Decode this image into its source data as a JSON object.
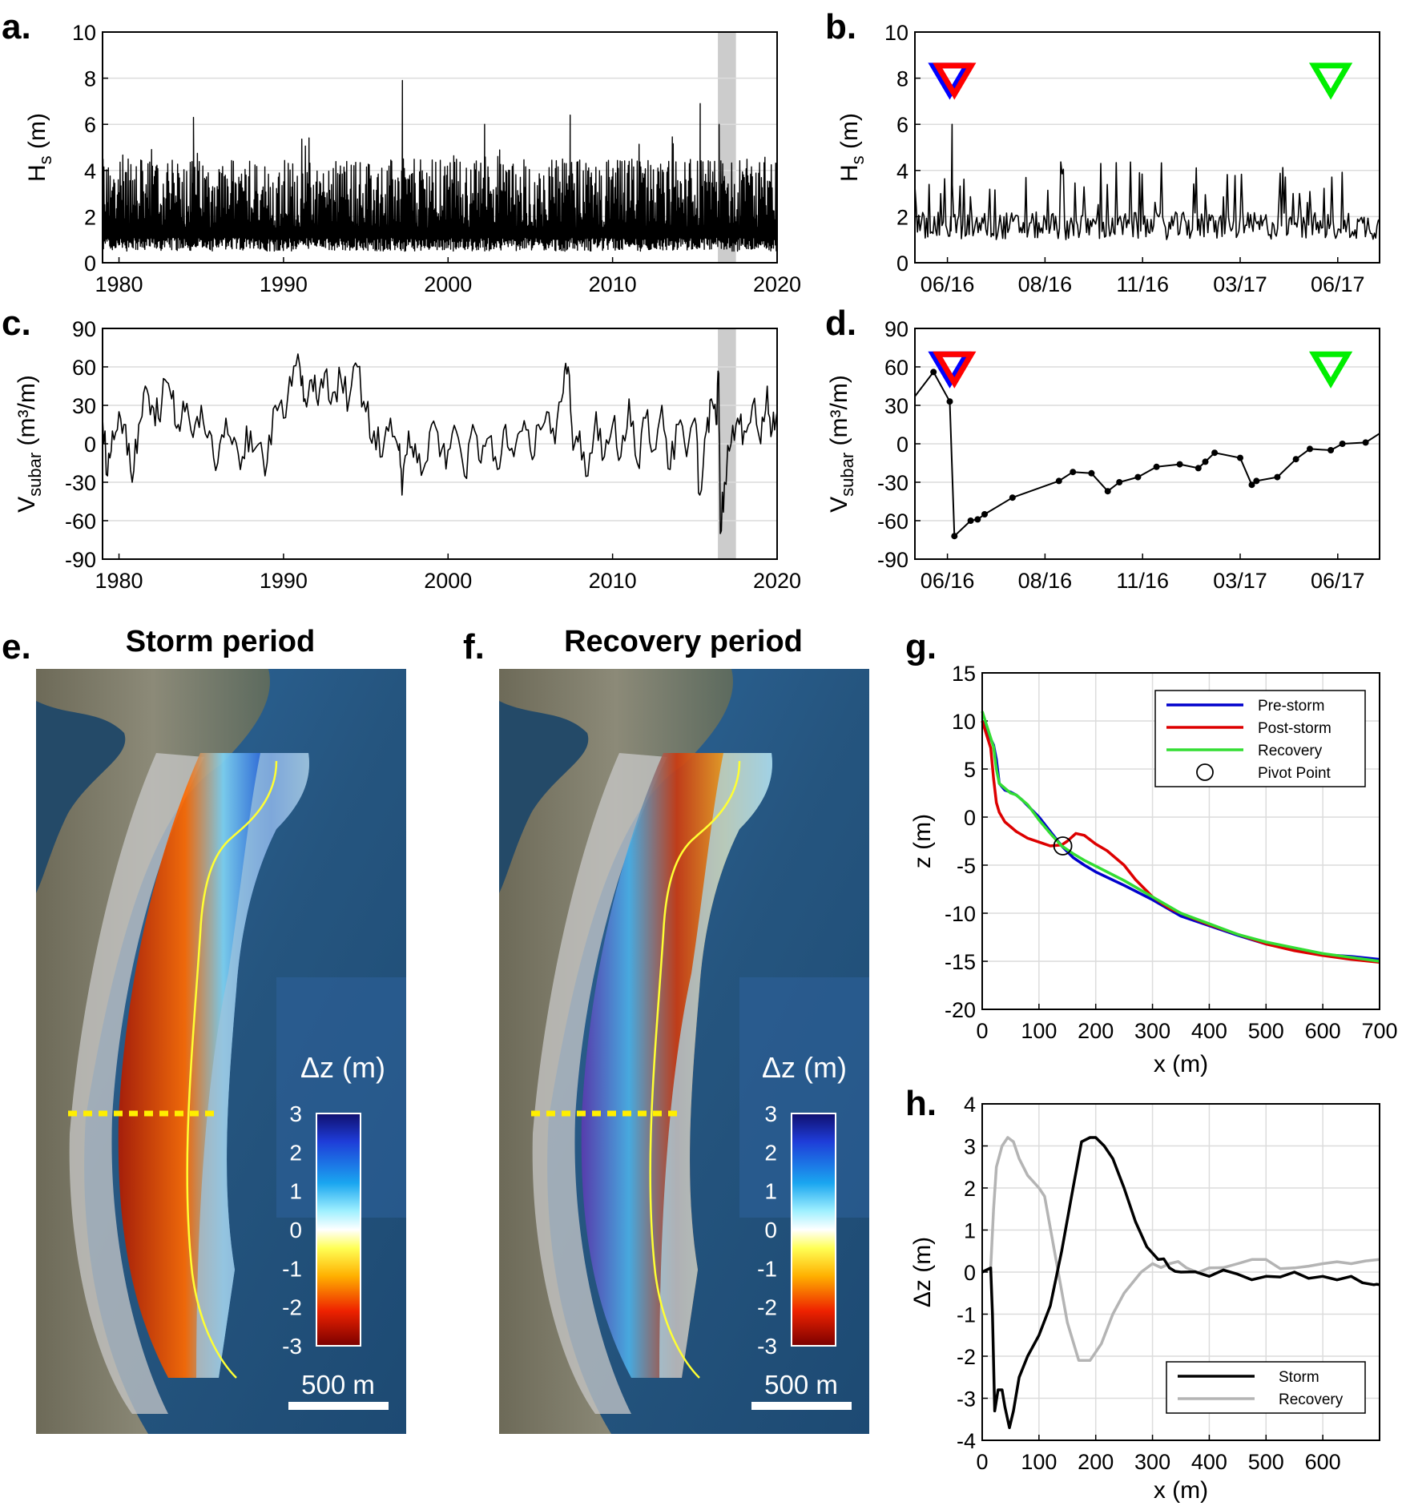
{
  "figure": {
    "panel_letters": [
      "a.",
      "b.",
      "c.",
      "d.",
      "e.",
      "f.",
      "g.",
      "h."
    ]
  },
  "chart_data": [
    {
      "id": "a",
      "type": "line",
      "title": "",
      "ylabel_main": "H",
      "ylabel_sub": "s",
      "ylabel_unit": " (m)",
      "xlim": [
        1979,
        2020
      ],
      "ylim": [
        0,
        10
      ],
      "xticks": [
        1980,
        1990,
        2000,
        2010,
        2020
      ],
      "yticks": [
        0,
        2,
        4,
        6,
        8,
        10
      ],
      "shaded_period": [
        2016.4,
        2017.5
      ],
      "series_summary": {
        "baseline_min": 0.5,
        "typical": 1.5,
        "typical_upper": 4.0,
        "notable_peaks": [
          [
            1984.5,
            6.3
          ],
          [
            1997.2,
            7.9
          ],
          [
            2002.2,
            6.0
          ],
          [
            2007.4,
            6.4
          ],
          [
            2015.3,
            6.9
          ],
          [
            2016.45,
            6.0
          ]
        ]
      },
      "color": "#000000"
    },
    {
      "id": "b",
      "type": "line",
      "ylabel_main": "H",
      "ylabel_sub": "s",
      "ylabel_unit": " (m)",
      "xlim": [
        0,
        100
      ],
      "ylim": [
        0,
        10
      ],
      "xtick_labels": [
        "06/16",
        "08/16",
        "11/16",
        "03/17",
        "06/17"
      ],
      "xtick_positions": [
        7,
        28,
        49,
        70,
        91
      ],
      "yticks": [
        0,
        2,
        4,
        6,
        8,
        10
      ],
      "values_summary": {
        "peak_pos": 8,
        "peak_value": 6.0,
        "typical": 1.6
      },
      "markers": [
        {
          "x": 7.5,
          "y": 8,
          "color": "#0000ff",
          "label": "Pre-storm"
        },
        {
          "x": 8.5,
          "y": 8,
          "color": "#ff0000",
          "label": "Post-storm"
        },
        {
          "x": 89.5,
          "y": 8,
          "color": "#00ee00",
          "label": "Recovery"
        }
      ]
    },
    {
      "id": "c",
      "type": "line",
      "ylabel_main": "V",
      "ylabel_sub": "subar",
      "ylabel_unit": " (m³/m)",
      "xlim": [
        1979,
        2020
      ],
      "ylim": [
        -90,
        90
      ],
      "xticks": [
        1980,
        1990,
        2000,
        2010,
        2020
      ],
      "yticks": [
        -90,
        -60,
        -30,
        0,
        30,
        60,
        90
      ],
      "shaded_period": [
        2016.4,
        2017.5
      ],
      "x": [
        1979.0,
        1979.3,
        1979.6,
        1980.0,
        1980.4,
        1980.8,
        1981.2,
        1981.6,
        1982.0,
        1982.4,
        1982.8,
        1983.2,
        1983.6,
        1984.0,
        1984.5,
        1985.0,
        1985.5,
        1986.0,
        1986.5,
        1987.0,
        1987.5,
        1988.0,
        1988.5,
        1989.0,
        1989.5,
        1990.0,
        1990.5,
        1991.0,
        1991.3,
        1991.7,
        1992.1,
        1992.5,
        1993.0,
        1993.5,
        1994.0,
        1994.5,
        1995.0,
        1995.5,
        1996.0,
        1996.5,
        1997.0,
        1997.2,
        1997.6,
        1998.0,
        1998.5,
        1999.0,
        1999.5,
        2000.0,
        2000.5,
        2001.0,
        2001.5,
        2002.0,
        2002.5,
        2003.0,
        2003.5,
        2004.0,
        2004.5,
        2005.0,
        2005.5,
        2006.0,
        2006.5,
        2007.0,
        2007.3,
        2007.6,
        2008.0,
        2008.5,
        2009.0,
        2009.5,
        2010.0,
        2010.5,
        2011.0,
        2011.5,
        2012.0,
        2012.5,
        2013.0,
        2013.5,
        2014.0,
        2014.5,
        2015.0,
        2015.3,
        2015.7,
        2016.0,
        2016.3,
        2016.45,
        2016.55,
        2016.8,
        2017.2,
        2017.6,
        2018.0,
        2018.5,
        2019.0,
        2019.4,
        2019.7,
        2020.0
      ],
      "values": [
        20,
        -25,
        10,
        25,
        15,
        -30,
        15,
        45,
        30,
        20,
        50,
        35,
        15,
        25,
        5,
        30,
        10,
        -15,
        20,
        5,
        -10,
        10,
        0,
        -15,
        30,
        20,
        45,
        60,
        35,
        50,
        30,
        55,
        40,
        50,
        35,
        60,
        25,
        10,
        -10,
        20,
        -5,
        -40,
        10,
        0,
        -20,
        15,
        -10,
        -5,
        10,
        -25,
        15,
        -15,
        5,
        -20,
        15,
        -10,
        10,
        -5,
        15,
        25,
        0,
        40,
        60,
        -5,
        10,
        -25,
        25,
        -10,
        15,
        -10,
        35,
        -15,
        20,
        -5,
        30,
        -20,
        15,
        -10,
        20,
        -40,
        10,
        35,
        15,
        55,
        -70,
        -30,
        0,
        20,
        10,
        30,
        0,
        45,
        10,
        25
      ],
      "color": "#000000"
    },
    {
      "id": "d",
      "type": "line",
      "ylabel_main": "V",
      "ylabel_sub": "subar",
      "ylabel_unit": " (m³/m)",
      "xlim": [
        0,
        100
      ],
      "ylim": [
        -90,
        90
      ],
      "xtick_labels": [
        "06/16",
        "08/16",
        "11/16",
        "03/17",
        "06/17"
      ],
      "xtick_positions": [
        7,
        28,
        49,
        70,
        91
      ],
      "yticks": [
        -90,
        -60,
        -30,
        0,
        30,
        60,
        90
      ],
      "x": [
        0,
        4,
        7.5,
        8.5,
        12,
        13.5,
        15,
        21,
        31,
        34,
        38,
        41.5,
        44,
        48,
        52,
        57,
        61,
        62.5,
        64.5,
        70,
        72.5,
        73.5,
        78,
        82,
        85,
        89.5,
        92,
        97,
        100
      ],
      "values": [
        37,
        56,
        33,
        -72,
        -60,
        -59,
        -55,
        -42,
        -29,
        -22,
        -23,
        -37,
        -30,
        -26,
        -18,
        -16,
        -19,
        -14,
        -7,
        -11,
        -32,
        -29,
        -26,
        -12,
        -4,
        -5,
        0,
        1,
        8
      ],
      "markers": [
        {
          "x": 7.5,
          "y": 60,
          "color": "#0000ff"
        },
        {
          "x": 8.5,
          "y": 60,
          "color": "#ff0000"
        },
        {
          "x": 89.5,
          "y": 60,
          "color": "#00ee00"
        }
      ]
    },
    {
      "id": "g",
      "type": "line",
      "xlabel": "x (m)",
      "ylabel": "z (m)",
      "xlim": [
        0,
        700
      ],
      "ylim": [
        -20,
        15
      ],
      "xticks": [
        0,
        100,
        200,
        300,
        400,
        500,
        600,
        700
      ],
      "yticks": [
        -20,
        -15,
        -10,
        -5,
        0,
        5,
        10,
        15
      ],
      "grid": true,
      "legend_position": "top-right",
      "series": [
        {
          "name": "Pre-storm",
          "color": "#0000cc",
          "x": [
            0,
            20,
            25,
            30,
            40,
            50,
            60,
            70,
            80,
            100,
            120,
            140,
            160,
            180,
            200,
            250,
            300,
            350,
            400,
            450,
            500,
            550,
            600,
            650,
            700
          ],
          "y": [
            10,
            7.5,
            6,
            3.5,
            2.8,
            2.6,
            2.3,
            1.8,
            1.2,
            0,
            -1.5,
            -3,
            -4.2,
            -5,
            -5.7,
            -7.1,
            -8.6,
            -10.3,
            -11.3,
            -12.3,
            -13.2,
            -13.8,
            -14.3,
            -14.5,
            -14.8
          ]
        },
        {
          "name": "Post-storm",
          "color": "#dd0000",
          "x": [
            0,
            15,
            20,
            25,
            30,
            40,
            60,
            80,
            100,
            120,
            140,
            150,
            165,
            180,
            200,
            220,
            250,
            270,
            300,
            330,
            370,
            400,
            450,
            500,
            550,
            600,
            650,
            700
          ],
          "y": [
            10,
            7.2,
            4,
            1.5,
            0.5,
            -0.5,
            -1.5,
            -2.2,
            -2.6,
            -3,
            -2.9,
            -2.5,
            -1.7,
            -1.9,
            -2.8,
            -3.5,
            -5,
            -6.5,
            -8.3,
            -9.5,
            -10.5,
            -11.2,
            -12.2,
            -13.2,
            -13.9,
            -14.4,
            -14.8,
            -15.1
          ]
        },
        {
          "name": "Recovery",
          "color": "#33dd33",
          "x": [
            0,
            20,
            25,
            30,
            40,
            50,
            60,
            80,
            100,
            120,
            140,
            160,
            180,
            200,
            250,
            300,
            350,
            400,
            450,
            500,
            550,
            600,
            650,
            700
          ],
          "y": [
            11,
            7.3,
            5,
            3.5,
            3,
            2.5,
            2.3,
            1.3,
            -0.3,
            -1.7,
            -3,
            -3.8,
            -4.5,
            -5.1,
            -6.6,
            -8.3,
            -10,
            -11.1,
            -12.2,
            -13,
            -13.6,
            -14.2,
            -14.6,
            -15
          ]
        }
      ],
      "pivot_point": {
        "x": 142,
        "y": -3.0,
        "label": "Pivot Point"
      }
    },
    {
      "id": "h",
      "type": "line",
      "xlabel": "x (m)",
      "ylabel": "Δz (m)",
      "xlim": [
        0,
        700
      ],
      "ylim": [
        -4,
        4
      ],
      "xticks": [
        0,
        100,
        200,
        300,
        400,
        500,
        600
      ],
      "yticks": [
        -4,
        -3,
        -2,
        -1,
        0,
        1,
        2,
        3,
        4
      ],
      "grid": true,
      "legend_position": "bottom-right",
      "series": [
        {
          "name": "Storm",
          "color": "#000000",
          "x": [
            0,
            15,
            18,
            22,
            28,
            35,
            40,
            48,
            55,
            65,
            80,
            100,
            120,
            140,
            160,
            175,
            190,
            200,
            215,
            230,
            250,
            270,
            290,
            310,
            330,
            350,
            400,
            450,
            500,
            550,
            600,
            650,
            690,
            700
          ],
          "y": [
            0,
            0.1,
            -1,
            -3.3,
            -2.8,
            -2.8,
            -3.2,
            -3.7,
            -3.3,
            -2.5,
            -2,
            -1.5,
            -0.8,
            0.5,
            2,
            3.1,
            3.2,
            3.2,
            3.0,
            2.7,
            2.0,
            1.2,
            0.6,
            0.3,
            0.1,
            0,
            -0.1,
            -0.05,
            -0.1,
            0,
            -0.1,
            -0.1,
            -0.3,
            -0.3
          ]
        },
        {
          "name": "Recovery",
          "color": "#b4b4b4",
          "x": [
            0,
            15,
            20,
            25,
            35,
            45,
            55,
            65,
            80,
            100,
            110,
            130,
            150,
            170,
            190,
            210,
            230,
            250,
            280,
            300,
            330,
            360,
            400,
            450,
            500,
            550,
            600,
            650,
            700
          ],
          "y": [
            0,
            0.1,
            1.5,
            2.5,
            3.0,
            3.2,
            3.1,
            2.7,
            2.3,
            2.0,
            1.8,
            0.3,
            -1.2,
            -2.1,
            -2.1,
            -1.7,
            -1.0,
            -0.5,
            0,
            0.2,
            0.2,
            0.1,
            0.1,
            0.2,
            0.3,
            0.1,
            0.2,
            0.2,
            0.3
          ]
        }
      ]
    }
  ],
  "maps": [
    {
      "id": "e",
      "title": "Storm period",
      "colorbar_title": "Δz (m)",
      "colorbar_ticks": [
        "3",
        "2",
        "1",
        "0",
        "-1",
        "-2",
        "-3"
      ],
      "scale_label": "500 m"
    },
    {
      "id": "f",
      "title": "Recovery period",
      "colorbar_title": "Δz (m)",
      "colorbar_ticks": [
        "3",
        "2",
        "1",
        "0",
        "-1",
        "-2",
        "-3"
      ],
      "scale_label": "500 m"
    }
  ],
  "colors": {
    "axis": "#000000",
    "grid": "#dcdcdc",
    "shade": "#cccccc",
    "sea": "#2a5b8c",
    "land": "#5b5f4a",
    "contour": "#ffff33",
    "transect": "#ffee00"
  }
}
